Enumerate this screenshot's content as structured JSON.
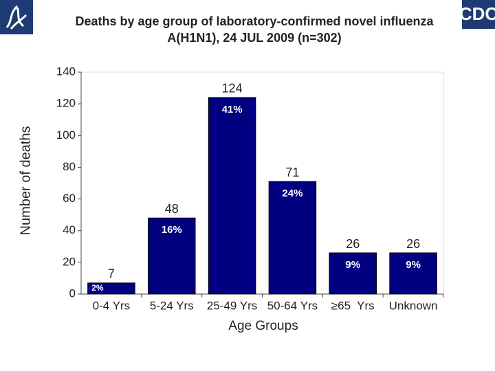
{
  "chart_data": {
    "type": "bar",
    "title_lines": [
      "Deaths by age group of laboratory-confirmed novel influenza",
      "A(H1N1), 24 JUL 2009 (n=302)"
    ],
    "logo_text": "CDC",
    "categories": [
      "0-4 Yrs",
      "5-24 Yrs",
      "25-49 Yrs",
      "50-64 Yrs",
      "≥65  Yrs",
      "Unknown"
    ],
    "values": [
      7,
      48,
      124,
      71,
      26,
      26
    ],
    "share_labels": [
      "2%",
      "16%",
      "41%",
      "24%",
      "9%",
      "9%"
    ],
    "color": "#000080",
    "ylim": [
      0,
      140
    ],
    "yticks": [
      0,
      20,
      40,
      60,
      80,
      100,
      120,
      140
    ],
    "x_label": "Age Groups",
    "y_label": "Number of deaths"
  }
}
